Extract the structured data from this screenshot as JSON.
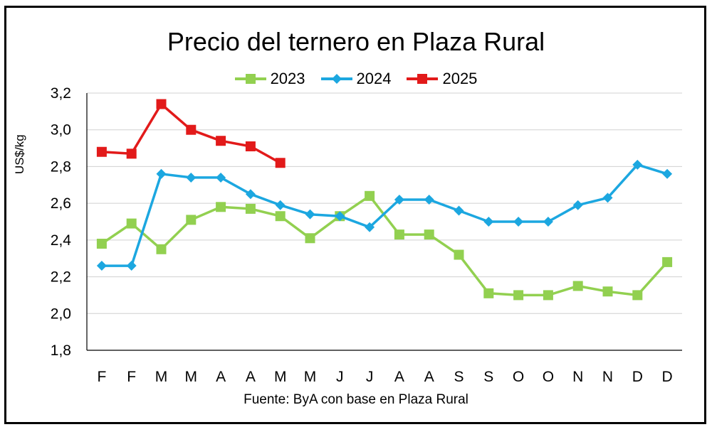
{
  "chart_data": {
    "type": "line",
    "title": "Precio del ternero en Plaza Rural",
    "ylabel": "US$/kg",
    "xlabel": "",
    "source": "Fuente: ByA con base en Plaza Rural",
    "categories": [
      "F",
      "F",
      "M",
      "M",
      "A",
      "A",
      "M",
      "M",
      "J",
      "J",
      "A",
      "A",
      "S",
      "S",
      "O",
      "O",
      "N",
      "N",
      "D",
      "D"
    ],
    "ylim": [
      1.8,
      3.2
    ],
    "yticks": [
      "1,8",
      "2,0",
      "2,2",
      "2,4",
      "2,6",
      "2,8",
      "3,0",
      "3,2"
    ],
    "ytick_values": [
      1.8,
      2.0,
      2.2,
      2.4,
      2.6,
      2.8,
      3.0,
      3.2
    ],
    "grid": true,
    "legend_position": "top",
    "series": [
      {
        "name": "2023",
        "color": "#92D050",
        "marker": "square",
        "values": [
          2.38,
          2.49,
          2.35,
          2.51,
          2.58,
          2.57,
          2.53,
          2.41,
          2.53,
          2.64,
          2.43,
          2.43,
          2.32,
          2.11,
          2.1,
          2.1,
          2.15,
          2.12,
          2.1,
          2.28
        ]
      },
      {
        "name": "2024",
        "color": "#1CA7E0",
        "marker": "diamond",
        "values": [
          2.26,
          2.26,
          2.76,
          2.74,
          2.74,
          2.65,
          2.59,
          2.54,
          2.53,
          2.47,
          2.62,
          2.62,
          2.56,
          2.5,
          2.5,
          2.5,
          2.59,
          2.63,
          2.81,
          2.76
        ]
      },
      {
        "name": "2025",
        "color": "#E21A1A",
        "marker": "square",
        "values": [
          2.88,
          2.87,
          3.14,
          3.0,
          2.94,
          2.91,
          2.82,
          null,
          null,
          null,
          null,
          null,
          null,
          null,
          null,
          null,
          null,
          null,
          null,
          null
        ]
      }
    ]
  }
}
